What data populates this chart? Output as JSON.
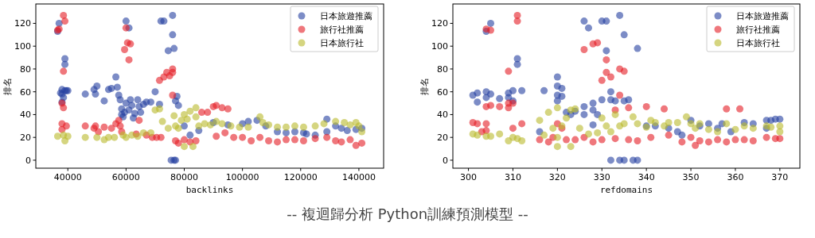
{
  "chart_data": [
    {
      "type": "scatter",
      "xlabel": "backlinks",
      "ylabel": "排名",
      "xlim": [
        29000,
        148500
      ],
      "ylim": [
        -7,
        137
      ],
      "xticks": [
        40000,
        60000,
        80000,
        100000,
        120000,
        140000
      ],
      "yticks": [
        0,
        20,
        40,
        60,
        80,
        100,
        120
      ],
      "legend": "top right",
      "marker": "circle",
      "series": [
        {
          "name": "日本旅遊推薦",
          "color": "#2540a0",
          "x": [
            36500,
            37000,
            37500,
            38000,
            38000,
            38500,
            39000,
            39000,
            39000,
            39500,
            40000,
            38000,
            46000,
            49000,
            49500,
            50000,
            52500,
            54000,
            55000,
            56500,
            57000,
            57500,
            58000,
            58500,
            58500,
            59000,
            59500,
            60000,
            61000,
            60000,
            61000,
            61500,
            62000,
            62500,
            63000,
            64000,
            64500,
            65000,
            66000,
            67000,
            68500,
            70000,
            71500,
            72000,
            73000,
            74500,
            76000,
            76000,
            76500,
            76500,
            75500,
            77000,
            77000,
            77500,
            78000,
            80000,
            82000,
            85000,
            90000,
            95000,
            100000,
            102000,
            105000,
            108000,
            112000,
            115000,
            118000,
            121000,
            122000,
            125000,
            129000,
            129000,
            132000,
            134000,
            136000,
            139000,
            141000
          ],
          "values": [
            113,
            120,
            59,
            58,
            51,
            55,
            89,
            84,
            61,
            61,
            61,
            62,
            58,
            62,
            58,
            65,
            52,
            62,
            63,
            73,
            64,
            57,
            53,
            45,
            40,
            38,
            42,
            122,
            116,
            50,
            44,
            53,
            48,
            37,
            41,
            53,
            47,
            42,
            49,
            51,
            51,
            60,
            49,
            122,
            122,
            96,
            127,
            110,
            98,
            0,
            0,
            0,
            52,
            56,
            48,
            30,
            22,
            26,
            33,
            31,
            32,
            34,
            35,
            30,
            25,
            24,
            25,
            24,
            23,
            22,
            36,
            25,
            30,
            28,
            26,
            27,
            28
          ]
        },
        {
          "name": "旅行社推薦",
          "color": "#e51c24",
          "x": [
            36500,
            37000,
            38500,
            39000,
            38500,
            38000,
            38500,
            38000,
            38000,
            39500,
            46000,
            49000,
            49500,
            50500,
            52500,
            55000,
            56500,
            57500,
            58000,
            58500,
            59500,
            60500,
            61500,
            61000,
            60000,
            63500,
            64500,
            67000,
            69000,
            70500,
            72000,
            71500,
            73000,
            74000,
            75000,
            76000,
            76000,
            76000,
            77000,
            78000,
            80000,
            82000,
            84000,
            86000,
            88000,
            90000,
            91000,
            93000,
            95000,
            91000,
            94000,
            97000,
            100000,
            103000,
            106000,
            109000,
            112000,
            115000,
            118000,
            121000,
            125000,
            129000,
            132000,
            134000,
            137000,
            139000,
            141000
          ],
          "values": [
            114,
            115,
            127,
            122,
            78,
            50,
            46,
            32,
            27,
            30,
            30,
            28,
            30,
            25,
            29,
            28,
            32,
            35,
            30,
            25,
            97,
            103,
            102,
            88,
            116,
            23,
            35,
            22,
            20,
            20,
            20,
            70,
            73,
            77,
            74,
            80,
            77,
            57,
            17,
            15,
            18,
            16,
            17,
            42,
            42,
            47,
            48,
            46,
            45,
            21,
            24,
            20,
            20,
            17,
            20,
            17,
            16,
            18,
            18,
            17,
            19,
            20,
            17,
            16,
            18,
            13,
            15
          ]
        },
        {
          "name": "日本旅行社",
          "color": "#b9b92c",
          "x": [
            36500,
            38500,
            39000,
            40000,
            46000,
            50000,
            52500,
            54000,
            56000,
            59000,
            60000,
            62000,
            64000,
            66000,
            68500,
            70000,
            71500,
            72500,
            74500,
            76500,
            77000,
            78000,
            79000,
            80000,
            80000,
            81000,
            82000,
            83000,
            84000,
            84000,
            85000,
            87000,
            89000,
            91000,
            93000,
            96000,
            99000,
            102000,
            106000,
            107000,
            109000,
            112000,
            115000,
            118000,
            121000,
            125000,
            128000,
            132000,
            135000,
            137000,
            139000,
            140000,
            141000
          ],
          "values": [
            21,
            22,
            17,
            21,
            20,
            20,
            18,
            20,
            20,
            22,
            20,
            22,
            21,
            24,
            24,
            44,
            45,
            34,
            28,
            39,
            30,
            28,
            35,
            12,
            40,
            36,
            43,
            12,
            46,
            38,
            30,
            32,
            31,
            34,
            32,
            30,
            29,
            29,
            38,
            33,
            31,
            29,
            29,
            30,
            29,
            30,
            32,
            34,
            33,
            31,
            33,
            30,
            25
          ]
        }
      ]
    },
    {
      "type": "scatter",
      "xlabel": "refdomains",
      "ylabel": "排名",
      "xlim": [
        296.5,
        374.5
      ],
      "ylim": [
        -7,
        137
      ],
      "xticks": [
        300,
        310,
        320,
        330,
        340,
        350,
        360,
        370
      ],
      "yticks": [
        0,
        20,
        40,
        60,
        80,
        100,
        120
      ],
      "legend": "top right",
      "marker": "circle",
      "annotations": [
        "-- 複迴歸分析 Python訓練預測模型 --"
      ],
      "series": [
        {
          "name": "日本旅遊推薦",
          "color": "#2540a0",
          "x": [
            301,
            302,
            302,
            304,
            304,
            304,
            305,
            305,
            307,
            309,
            309,
            310,
            311,
            311,
            310,
            312,
            316,
            317,
            320,
            320,
            320,
            320,
            321,
            321,
            322,
            323,
            324,
            326,
            326,
            326,
            327,
            328,
            328,
            328,
            329,
            330,
            330,
            331,
            331,
            332,
            332,
            333,
            332,
            334,
            335,
            337,
            338,
            334,
            335,
            338,
            335,
            336,
            340,
            342,
            345,
            347,
            348,
            350,
            352,
            354,
            356,
            357,
            359,
            362,
            364,
            367,
            368,
            369,
            370,
            367
          ],
          "values": [
            57,
            51,
            59,
            60,
            55,
            113,
            120,
            58,
            54,
            59,
            55,
            52,
            89,
            84,
            61,
            61,
            25,
            61,
            73,
            65,
            57,
            52,
            63,
            56,
            42,
            40,
            43,
            122,
            47,
            40,
            116,
            50,
            44,
            31,
            40,
            53,
            122,
            122,
            96,
            60,
            53,
            52,
            0,
            0,
            0,
            0,
            0,
            127,
            110,
            98,
            52,
            53,
            30,
            30,
            28,
            25,
            22,
            35,
            30,
            32,
            28,
            32,
            25,
            33,
            32,
            35,
            35,
            36,
            36,
            28
          ]
        },
        {
          "name": "旅行社推薦",
          "color": "#e51c24",
          "x": [
            301,
            302,
            304,
            304,
            305,
            304,
            305,
            303,
            304,
            307,
            309,
            309,
            309,
            310,
            310,
            311,
            311,
            312,
            316,
            318,
            319,
            320,
            321,
            322,
            324,
            326,
            328,
            329,
            330,
            331,
            331,
            332,
            334,
            335,
            334,
            336,
            333,
            326,
            328,
            330,
            333,
            336,
            338,
            340,
            341,
            344,
            345,
            348,
            350,
            351,
            352,
            354,
            356,
            358,
            358,
            360,
            361,
            362,
            364,
            367,
            369,
            370
          ],
          "values": [
            33,
            32,
            32,
            47,
            48,
            115,
            114,
            25,
            26,
            47,
            78,
            46,
            50,
            50,
            28,
            127,
            122,
            32,
            18,
            16,
            20,
            32,
            28,
            18,
            18,
            97,
            102,
            103,
            70,
            77,
            88,
            73,
            80,
            78,
            57,
            46,
            44,
            20,
            16,
            18,
            19,
            18,
            17,
            47,
            20,
            45,
            22,
            16,
            20,
            13,
            17,
            16,
            18,
            45,
            16,
            18,
            45,
            18,
            17,
            20,
            19,
            19
          ]
        },
        {
          "name": "日本旅行社",
          "color": "#b9b92c",
          "x": [
            301,
            302,
            304,
            305,
            307,
            309,
            310,
            311,
            312,
            316,
            317,
            318,
            319,
            320,
            320,
            320,
            321,
            322,
            323,
            323,
            324,
            325,
            327,
            329,
            330,
            331,
            332,
            333,
            334,
            335,
            337,
            338,
            340,
            341,
            342,
            344,
            345,
            347,
            349,
            350,
            351,
            352,
            354,
            356,
            358,
            360,
            362,
            364,
            367,
            368,
            370,
            370
          ],
          "values": [
            23,
            22,
            21,
            21,
            23,
            17,
            20,
            19,
            17,
            35,
            22,
            42,
            28,
            46,
            12,
            20,
            30,
            37,
            12,
            44,
            45,
            28,
            23,
            24,
            37,
            30,
            25,
            40,
            30,
            32,
            38,
            32,
            29,
            35,
            33,
            30,
            33,
            33,
            38,
            32,
            28,
            32,
            27,
            25,
            32,
            27,
            30,
            28,
            30,
            29,
            30,
            25
          ]
        }
      ]
    }
  ]
}
